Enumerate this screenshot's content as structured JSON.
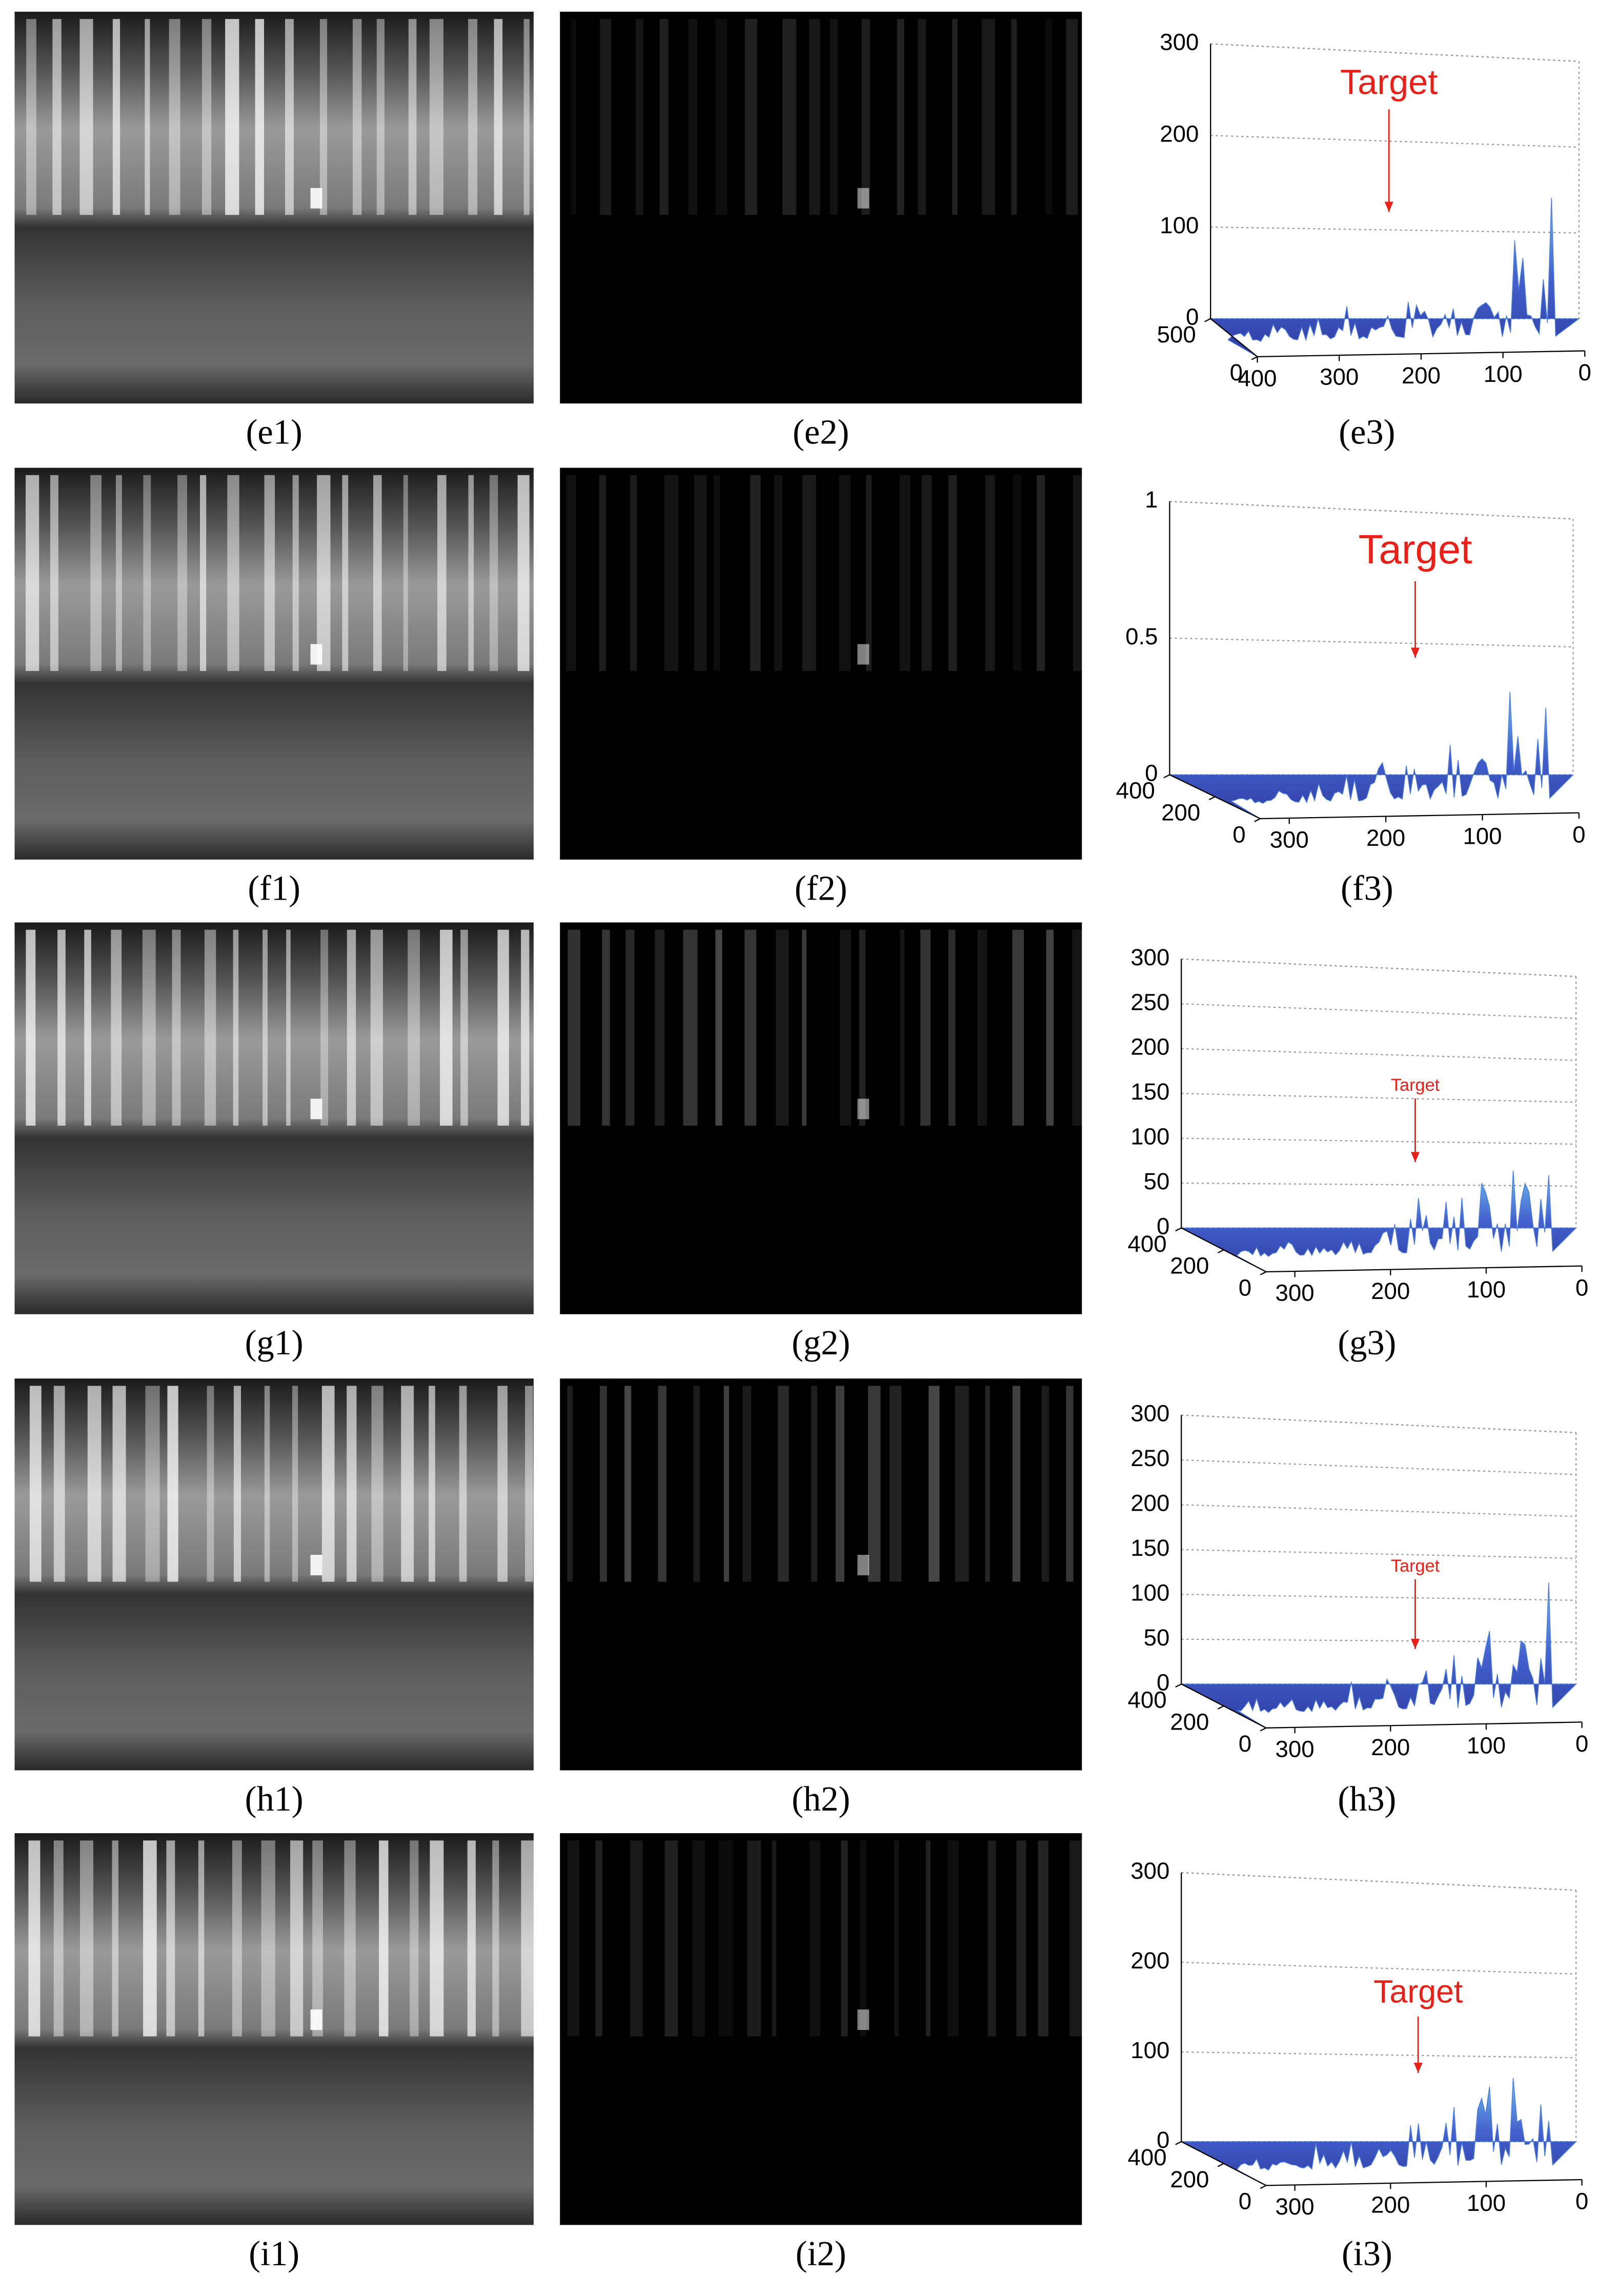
{
  "rows": [
    {
      "images": [
        {
          "caption": "(e1)"
        },
        {
          "caption": "(e2)"
        }
      ],
      "plot": {
        "type": "surface3d",
        "caption": "(e3)",
        "annotation": "Target",
        "zlim": [
          0,
          300
        ],
        "zticks": [
          0,
          100,
          200,
          300
        ],
        "xlim": [
          400,
          0
        ],
        "xticks": [
          400,
          300,
          200,
          100,
          0
        ],
        "ylim": [
          500,
          0
        ],
        "yticks": [
          500,
          0
        ]
      }
    },
    {
      "images": [
        {
          "caption": "(f1)"
        },
        {
          "caption": "(f2)"
        }
      ],
      "plot": {
        "type": "surface3d",
        "caption": "(f3)",
        "annotation": "Target",
        "zlim": [
          0,
          1
        ],
        "zticks": [
          0,
          0.5,
          1
        ],
        "xlim": [
          330,
          0
        ],
        "xticks": [
          300,
          200,
          100,
          0
        ],
        "ylim": [
          400,
          0
        ],
        "yticks": [
          400,
          200,
          0
        ]
      }
    },
    {
      "images": [
        {
          "caption": "(g1)"
        },
        {
          "caption": "(g2)"
        }
      ],
      "plot": {
        "type": "surface3d",
        "caption": "(g3)",
        "annotation": "Target",
        "zlim": [
          0,
          300
        ],
        "zticks": [
          0,
          50,
          100,
          150,
          200,
          250,
          300
        ],
        "xlim": [
          330,
          0
        ],
        "xticks": [
          300,
          200,
          100,
          0
        ],
        "ylim": [
          400,
          0
        ],
        "yticks": [
          400,
          200,
          0
        ]
      }
    },
    {
      "images": [
        {
          "caption": "(h1)"
        },
        {
          "caption": "(h2)"
        }
      ],
      "plot": {
        "type": "surface3d",
        "caption": "(h3)",
        "annotation": "Target",
        "zlim": [
          0,
          300
        ],
        "zticks": [
          0,
          50,
          100,
          150,
          200,
          250,
          300
        ],
        "xlim": [
          330,
          0
        ],
        "xticks": [
          300,
          200,
          100,
          0
        ],
        "ylim": [
          400,
          0
        ],
        "yticks": [
          400,
          200,
          0
        ]
      }
    },
    {
      "images": [
        {
          "caption": "(i1)"
        },
        {
          "caption": "(i2)"
        }
      ],
      "plot": {
        "type": "surface3d",
        "caption": "(i3)",
        "annotation": "Target",
        "zlim": [
          0,
          300
        ],
        "zticks": [
          0,
          100,
          200,
          300
        ],
        "xlim": [
          330,
          0
        ],
        "xticks": [
          300,
          200,
          100,
          0
        ],
        "ylim": [
          400,
          0
        ],
        "yticks": [
          400,
          200,
          0
        ]
      }
    }
  ]
}
